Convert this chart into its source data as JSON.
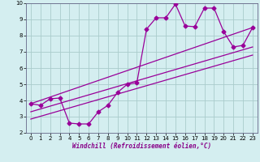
{
  "xlabel": "Windchill (Refroidissement éolien,°C)",
  "bg_color": "#d4eef0",
  "grid_color": "#aacccc",
  "line_color": "#990099",
  "xlim": [
    -0.5,
    23.5
  ],
  "ylim": [
    2,
    10
  ],
  "yticks": [
    2,
    3,
    4,
    5,
    6,
    7,
    8,
    9,
    10
  ],
  "xticks": [
    0,
    1,
    2,
    3,
    4,
    5,
    6,
    7,
    8,
    9,
    10,
    11,
    12,
    13,
    14,
    15,
    16,
    17,
    18,
    19,
    20,
    21,
    22,
    23
  ],
  "series1_x": [
    0,
    1,
    2,
    3,
    4,
    5,
    6,
    7,
    8,
    9,
    10,
    11,
    12,
    13,
    14,
    15,
    16,
    17,
    18,
    19,
    20,
    21,
    22,
    23
  ],
  "series1_y": [
    3.8,
    3.7,
    4.1,
    4.15,
    2.6,
    2.55,
    2.55,
    3.3,
    3.7,
    4.5,
    5.0,
    5.1,
    8.4,
    9.1,
    9.1,
    9.95,
    8.6,
    8.55,
    9.7,
    9.7,
    8.25,
    7.3,
    7.4,
    8.5
  ],
  "series2_x": [
    0,
    23
  ],
  "series2_y": [
    3.8,
    8.5
  ],
  "series3_x": [
    0,
    23
  ],
  "series3_y": [
    3.3,
    7.3
  ],
  "series4_x": [
    0,
    23
  ],
  "series4_y": [
    2.85,
    6.8
  ],
  "marker": "D",
  "marker_size": 2.5,
  "linewidth": 0.9
}
